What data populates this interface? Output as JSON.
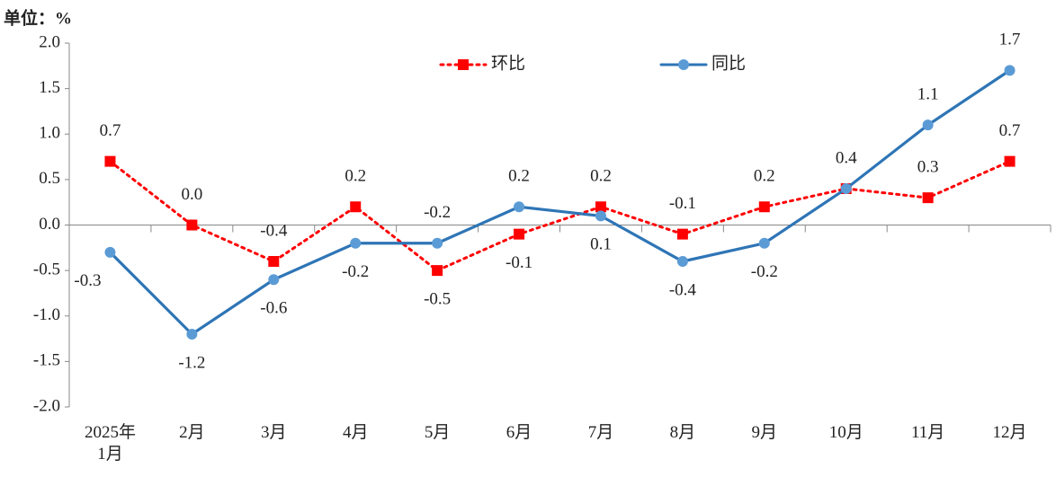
{
  "unit_label": "单位：%",
  "chart_data": {
    "type": "line",
    "categories": [
      "2025年1月",
      "2月",
      "3月",
      "4月",
      "5月",
      "6月",
      "7月",
      "8月",
      "9月",
      "10月",
      "11月",
      "12月"
    ],
    "series": [
      {
        "name": "环比",
        "color": "#ff0000",
        "line_style": "dotted",
        "marker": "square",
        "values": [
          0.7,
          0.0,
          -0.4,
          0.2,
          -0.5,
          -0.1,
          0.2,
          -0.1,
          0.2,
          0.4,
          0.3,
          0.7
        ],
        "value_labels": [
          "0.7",
          "0.0",
          "-0.4",
          "0.2",
          "-0.5",
          "-0.1",
          "0.2",
          "-0.1",
          "0.2",
          null,
          "0.3",
          "0.7"
        ]
      },
      {
        "name": "同比",
        "color": "#2e75b6",
        "line_style": "solid",
        "marker": "circle",
        "values": [
          -0.3,
          -1.2,
          -0.6,
          -0.2,
          -0.2,
          0.2,
          0.1,
          -0.4,
          -0.2,
          0.4,
          1.1,
          1.7
        ],
        "value_labels": [
          "-0.3",
          "-1.2",
          "-0.6",
          "-0.2",
          "-0.2",
          "0.2",
          "0.1",
          "-0.4",
          "-0.2",
          "0.4",
          "1.1",
          "1.7"
        ]
      }
    ],
    "ylim": [
      -2,
      2
    ],
    "yticks": [
      {
        "value": -2,
        "label": "-2.0"
      },
      {
        "value": -1.5,
        "label": "-1.5"
      },
      {
        "value": -1,
        "label": "-1.0"
      },
      {
        "value": -0.5,
        "label": "-0.5"
      },
      {
        "value": 0,
        "label": "0.0"
      },
      {
        "value": 0.5,
        "label": "0.5"
      },
      {
        "value": 1,
        "label": "1.0"
      },
      {
        "value": 1.5,
        "label": "1.5"
      },
      {
        "value": 2,
        "label": "2.0"
      }
    ],
    "grid": false
  }
}
